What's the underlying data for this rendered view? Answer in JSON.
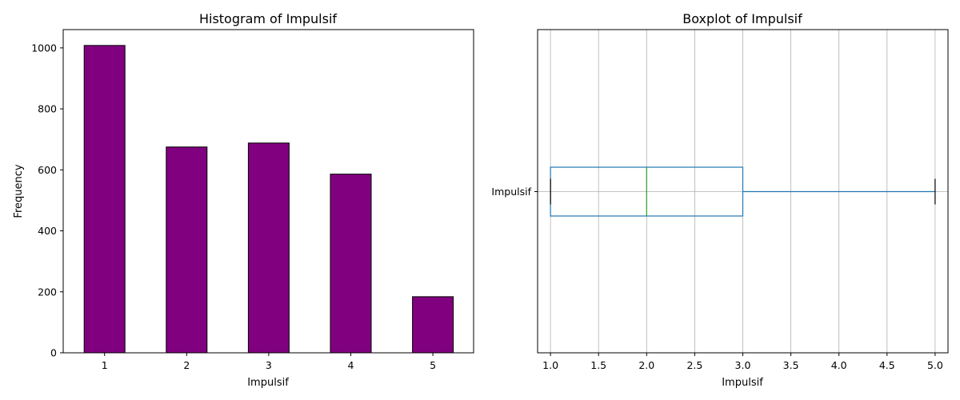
{
  "chart_data": [
    {
      "type": "bar",
      "title": "Histogram of Impulsif",
      "xlabel": "Impulsif",
      "ylabel": "Frequency",
      "categories": [
        "1",
        "2",
        "3",
        "4",
        "5"
      ],
      "values": [
        1008,
        675,
        688,
        586,
        184
      ],
      "ylim": [
        0,
        1060
      ],
      "yticks": [
        0,
        200,
        400,
        600,
        800,
        1000
      ],
      "bar_color": "#800080",
      "edge_color": "#000000",
      "grid": false
    },
    {
      "type": "boxplot",
      "title": "Boxplot of Impulsif",
      "xlabel": "Impulsif",
      "category": "Impulsif",
      "orientation": "horizontal",
      "stats": {
        "whisker_low": 1.0,
        "q1": 1.0,
        "median": 2.0,
        "q3": 3.0,
        "whisker_high": 5.0
      },
      "xlim": [
        0.866,
        5.134
      ],
      "xticks": [
        1.0,
        1.5,
        2.0,
        2.5,
        3.0,
        3.5,
        4.0,
        4.5,
        5.0
      ],
      "box_color": "#1f77b4",
      "median_color": "#2ca02c",
      "cap_color": "#000000",
      "grid": true
    }
  ]
}
